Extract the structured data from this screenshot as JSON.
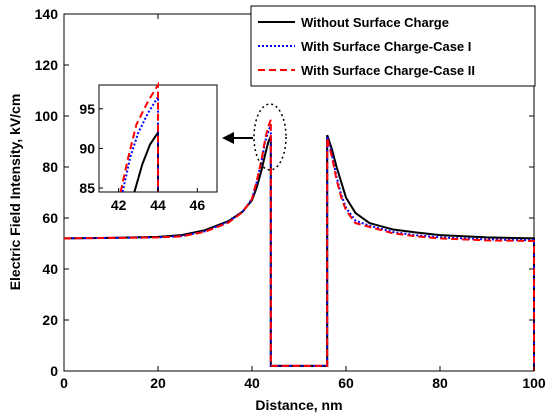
{
  "chart_data": {
    "type": "line",
    "xlabel": "Distance, nm",
    "ylabel": "Electric Field Intensity, kV/cm",
    "xlim": [
      0,
      100
    ],
    "ylim": [
      0,
      140
    ],
    "xticks": [
      "0",
      "20",
      "40",
      "60",
      "80",
      "100"
    ],
    "yticks": [
      "0",
      "20",
      "40",
      "60",
      "80",
      "100",
      "120",
      "140"
    ],
    "legend_position": "top-right",
    "series": [
      {
        "name": "Without Surface Charge",
        "color": "#000000",
        "dash": "solid",
        "points": [
          [
            0,
            52
          ],
          [
            10,
            52.2
          ],
          [
            20,
            52.6
          ],
          [
            25,
            53.3
          ],
          [
            30,
            55.2
          ],
          [
            35,
            58.8
          ],
          [
            38,
            62.5
          ],
          [
            40,
            67
          ],
          [
            41,
            72
          ],
          [
            42,
            78.5
          ],
          [
            42.8,
            85
          ],
          [
            43.5,
            90
          ],
          [
            44,
            92
          ],
          [
            44,
            2
          ],
          [
            56,
            2
          ],
          [
            56,
            92.5
          ],
          [
            57,
            87
          ],
          [
            58,
            80
          ],
          [
            59,
            74
          ],
          [
            60,
            68
          ],
          [
            62,
            62
          ],
          [
            65,
            58
          ],
          [
            70,
            55.5
          ],
          [
            75,
            54.3
          ],
          [
            80,
            53.3
          ],
          [
            90,
            52.4
          ],
          [
            100,
            52
          ],
          [
            100,
            0
          ]
        ]
      },
      {
        "name": "With Surface Charge-Case I",
        "color": "#0000ff",
        "dash": "dotted",
        "points": [
          [
            0,
            52
          ],
          [
            10,
            52.2
          ],
          [
            20,
            52.4
          ],
          [
            25,
            52.9
          ],
          [
            30,
            54.8
          ],
          [
            35,
            58.5
          ],
          [
            38,
            62.5
          ],
          [
            40,
            67.5
          ],
          [
            41,
            74
          ],
          [
            42,
            82
          ],
          [
            42.8,
            90
          ],
          [
            43.5,
            94
          ],
          [
            44,
            96.5
          ],
          [
            44,
            2
          ],
          [
            56,
            2
          ],
          [
            56,
            92
          ],
          [
            57,
            85
          ],
          [
            58,
            76
          ],
          [
            59,
            69
          ],
          [
            60,
            64
          ],
          [
            62,
            59
          ],
          [
            65,
            57
          ],
          [
            70,
            54.5
          ],
          [
            75,
            53.2
          ],
          [
            80,
            52.4
          ],
          [
            90,
            51.6
          ],
          [
            100,
            51.3
          ],
          [
            100,
            0
          ]
        ]
      },
      {
        "name": "With Surface Charge-Case II",
        "color": "#ff0000",
        "dash": "dashed",
        "points": [
          [
            0,
            52
          ],
          [
            10,
            52.2
          ],
          [
            20,
            52.4
          ],
          [
            25,
            52.8
          ],
          [
            30,
            54.6
          ],
          [
            35,
            58.2
          ],
          [
            38,
            62.3
          ],
          [
            40,
            67.5
          ],
          [
            41,
            74.5
          ],
          [
            42,
            82.5
          ],
          [
            42.8,
            91
          ],
          [
            43.5,
            96
          ],
          [
            44,
            98.5
          ],
          [
            44,
            2
          ],
          [
            56,
            2
          ],
          [
            56,
            91.5
          ],
          [
            57,
            84
          ],
          [
            58,
            75
          ],
          [
            59,
            68
          ],
          [
            60,
            63
          ],
          [
            62,
            58
          ],
          [
            65,
            56.5
          ],
          [
            70,
            54
          ],
          [
            75,
            52.8
          ],
          [
            80,
            52
          ],
          [
            90,
            51.2
          ],
          [
            100,
            51
          ],
          [
            100,
            0
          ]
        ]
      }
    ],
    "inset": {
      "xlim": [
        41,
        47
      ],
      "ylim": [
        84.5,
        98
      ],
      "xticks": [
        "42",
        "44",
        "46"
      ],
      "yticks": [
        "85",
        "90",
        "95"
      ],
      "series": [
        {
          "name": "Without Surface Charge",
          "points": [
            [
              42.8,
              84.5
            ],
            [
              43.2,
              88
            ],
            [
              43.6,
              90.5
            ],
            [
              44,
              92
            ],
            [
              44,
              84.5
            ]
          ]
        },
        {
          "name": "With Surface Charge-Case I",
          "points": [
            [
              42.2,
              84.5
            ],
            [
              42.6,
              89
            ],
            [
              43,
              92
            ],
            [
              43.5,
              94.5
            ],
            [
              44,
              96.5
            ],
            [
              44,
              84.5
            ]
          ]
        },
        {
          "name": "With Surface Charge-Case II",
          "points": [
            [
              42.1,
              84.5
            ],
            [
              42.5,
              89
            ],
            [
              42.9,
              93
            ],
            [
              43.5,
              96
            ],
            [
              44,
              98
            ],
            [
              44,
              84.5
            ]
          ]
        }
      ]
    }
  }
}
